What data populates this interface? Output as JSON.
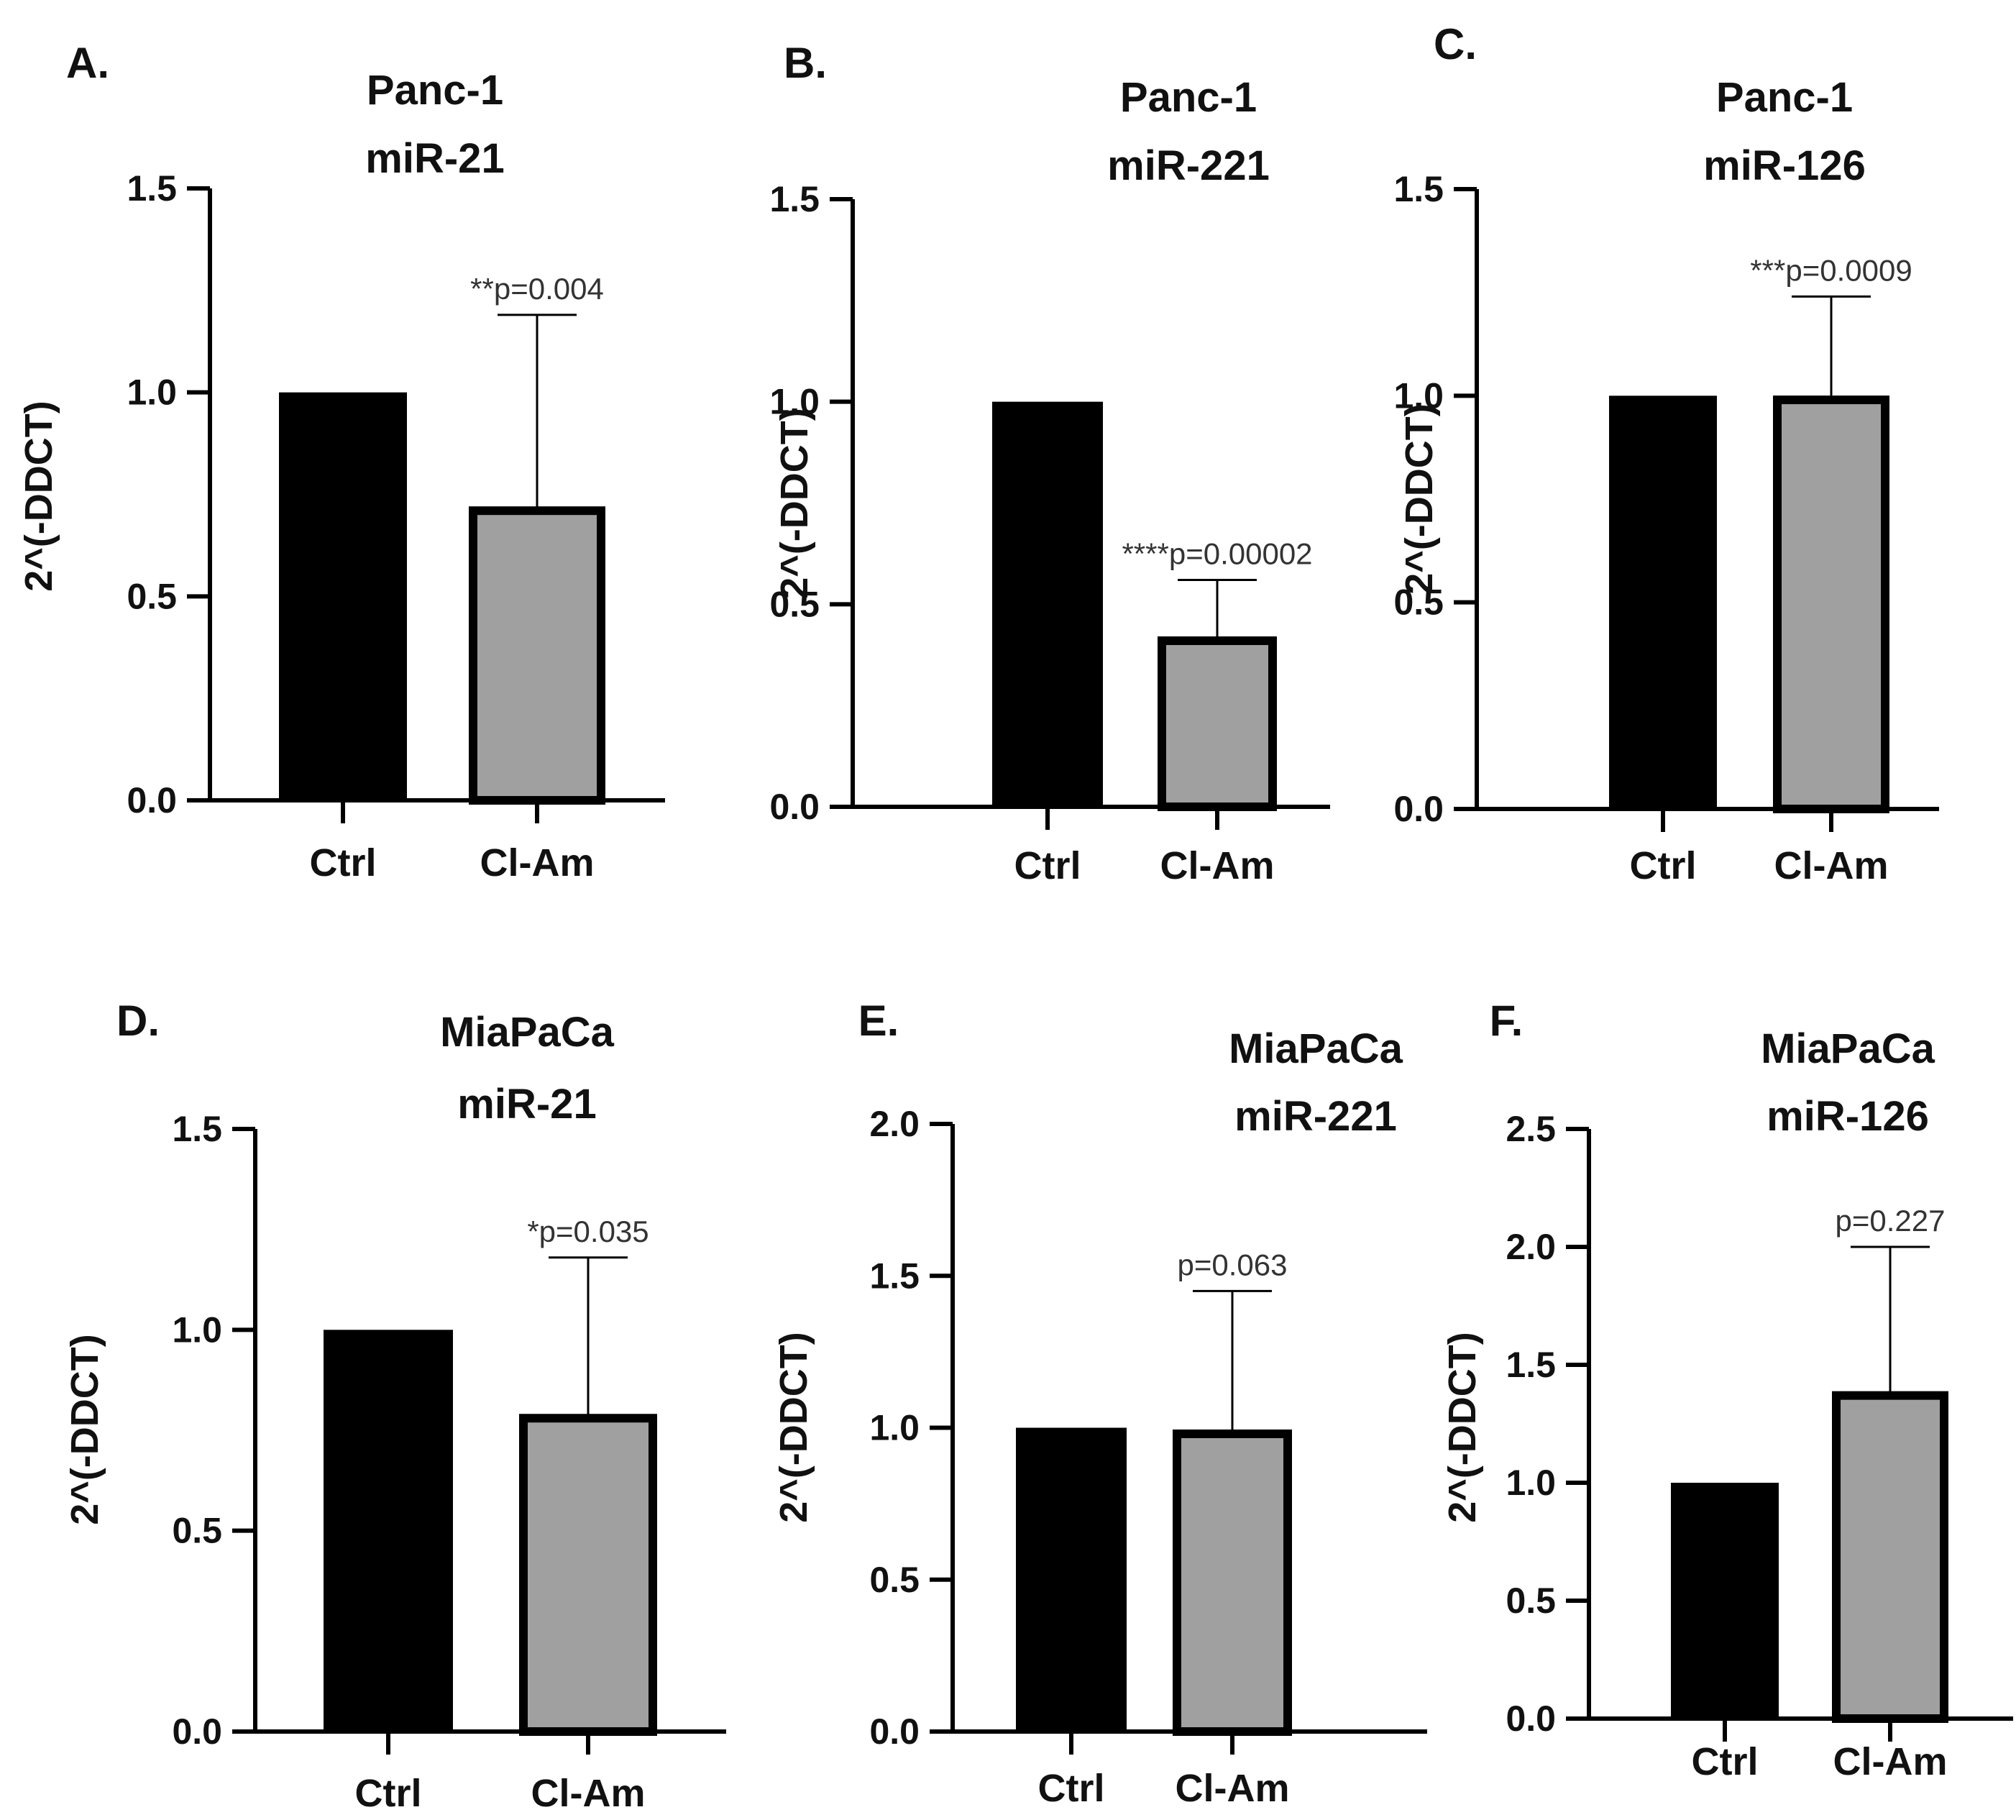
{
  "figure": {
    "background": "#ffffff"
  },
  "chart_data": [
    {
      "panel": "A.",
      "type": "bar",
      "title": [
        "Panc-1",
        "miR-21"
      ],
      "ylabel": "2^(-DDCT)",
      "ylim": [
        0,
        1.5
      ],
      "yticks": [
        "0.0",
        "0.5",
        "1.0",
        "1.5"
      ],
      "categories": [
        "Ctrl",
        "Cl-Am"
      ],
      "values": [
        1.0,
        0.71
      ],
      "error_upper": [
        null,
        1.19
      ],
      "annotation": "**p=0.004",
      "colors": [
        "#000000",
        "#a0a0a0"
      ]
    },
    {
      "panel": "B.",
      "type": "bar",
      "title": [
        "Panc-1",
        "miR-221"
      ],
      "ylabel": "2^(-DDCT)",
      "ylim": [
        0,
        1.5
      ],
      "yticks": [
        "0.0",
        "0.5",
        "1.0",
        "1.5"
      ],
      "categories": [
        "Ctrl",
        "Cl-Am"
      ],
      "values": [
        1.0,
        0.41
      ],
      "error_upper": [
        null,
        0.56
      ],
      "annotation": "****p=0.00002",
      "colors": [
        "#000000",
        "#a0a0a0"
      ]
    },
    {
      "panel": "C.",
      "type": "bar",
      "title": [
        "Panc-1",
        "miR-126"
      ],
      "ylabel": "2^(-DDCT)",
      "ylim": [
        0,
        1.5
      ],
      "yticks": [
        "0.0",
        "0.5",
        "1.0",
        "1.5"
      ],
      "categories": [
        "Ctrl",
        "Cl-Am"
      ],
      "values": [
        1.0,
        0.99
      ],
      "error_upper": [
        null,
        1.24
      ],
      "annotation": "***p=0.0009",
      "colors": [
        "#000000",
        "#a0a0a0"
      ]
    },
    {
      "panel": "D.",
      "type": "bar",
      "title": [
        "MiaPaCa",
        "miR-21"
      ],
      "ylabel": "2^(-DDCT)",
      "ylim": [
        0,
        1.5
      ],
      "yticks": [
        "0.0",
        "0.5",
        "1.0",
        "1.5"
      ],
      "categories": [
        "Ctrl",
        "Cl-Am"
      ],
      "values": [
        1.0,
        0.78
      ],
      "error_upper": [
        null,
        1.18
      ],
      "annotation": "*p=0.035",
      "colors": [
        "#000000",
        "#a0a0a0"
      ]
    },
    {
      "panel": "E.",
      "type": "bar",
      "title": [
        "MiaPaCa",
        "miR-221"
      ],
      "ylabel": "2^(-DDCT)",
      "ylim": [
        0,
        2.0
      ],
      "yticks": [
        "0.0",
        "0.5",
        "1.0",
        "1.5",
        "2.0"
      ],
      "categories": [
        "Ctrl",
        "Cl-Am"
      ],
      "values": [
        1.0,
        0.98
      ],
      "error_upper": [
        null,
        1.45
      ],
      "annotation": "p=0.063",
      "colors": [
        "#000000",
        "#a0a0a0"
      ]
    },
    {
      "panel": "F.",
      "type": "bar",
      "title": [
        "MiaPaCa",
        "miR-126"
      ],
      "ylabel": "2^(-DDCT)",
      "ylim": [
        0,
        2.5
      ],
      "yticks": [
        "0.0",
        "0.5",
        "1.0",
        "1.5",
        "2.0",
        "2.5"
      ],
      "categories": [
        "Ctrl",
        "Cl-Am"
      ],
      "values": [
        1.0,
        1.37
      ],
      "error_upper": [
        null,
        2.0
      ],
      "annotation": "p=0.227",
      "colors": [
        "#000000",
        "#a0a0a0"
      ]
    }
  ]
}
